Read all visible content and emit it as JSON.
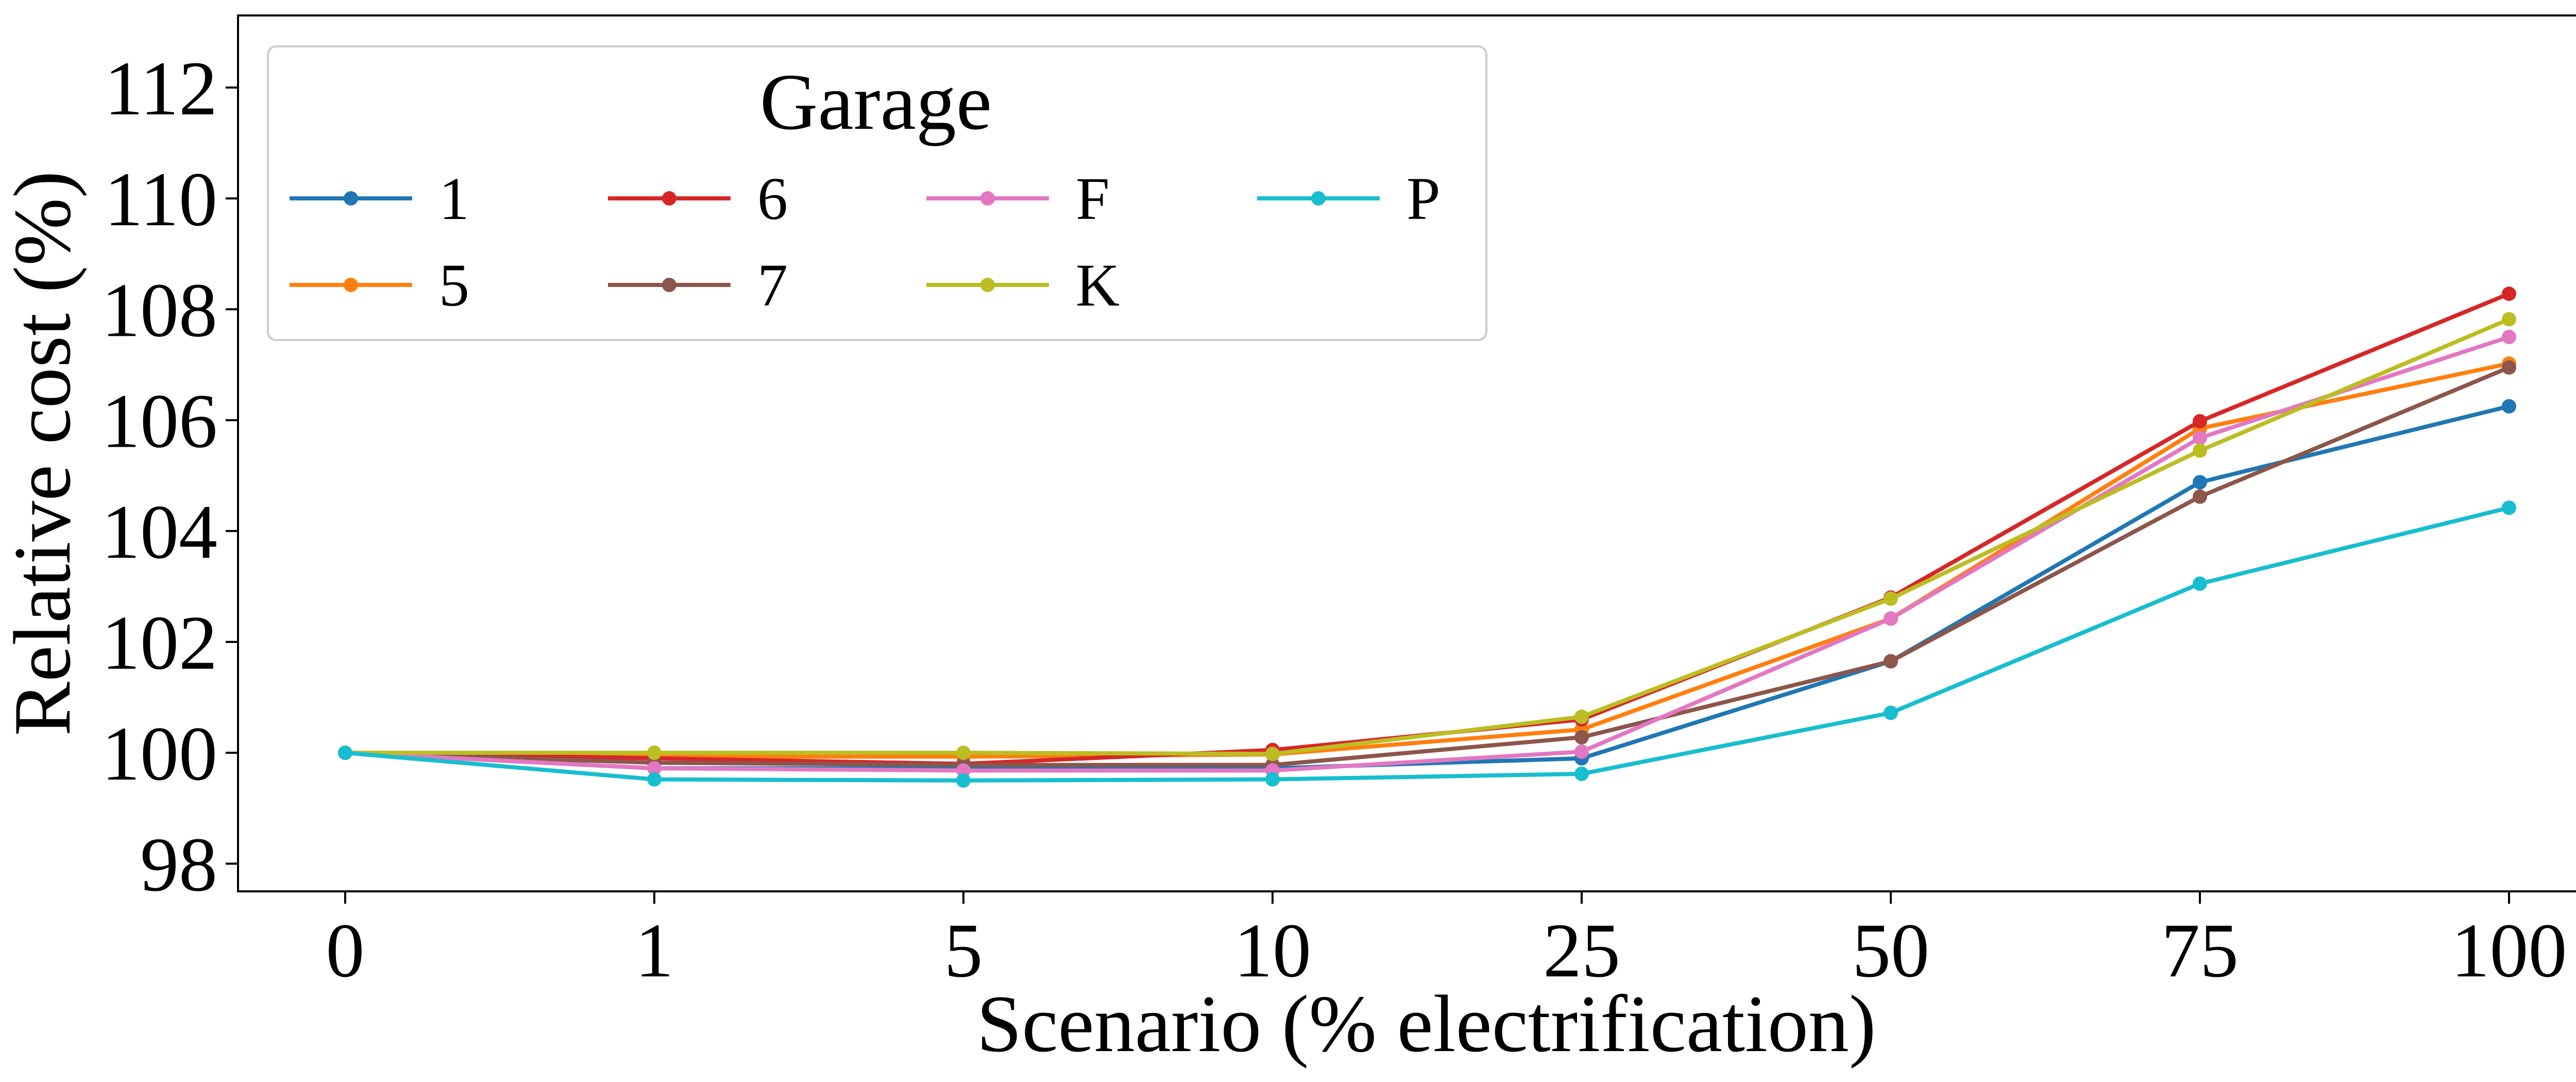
{
  "chart_data": {
    "type": "line",
    "xlabel": "Scenario (% electrification)",
    "ylabel": "Relative cost (%)",
    "categories": [
      "0",
      "1",
      "5",
      "10",
      "25",
      "50",
      "75",
      "100"
    ],
    "ylim": [
      97.5,
      113.3
    ],
    "yticks": [
      98,
      100,
      102,
      104,
      106,
      108,
      110,
      112
    ],
    "grid": false,
    "legend": {
      "title": "Garage",
      "placement": "top-left",
      "columns": 4
    },
    "series": [
      {
        "name": "1",
        "color": "#1f77b4",
        "values": [
          100.0,
          99.72,
          99.72,
          99.72,
          99.9,
          101.65,
          104.88,
          106.25
        ]
      },
      {
        "name": "5",
        "color": "#ff7f0e",
        "values": [
          100.0,
          99.93,
          99.93,
          99.97,
          100.42,
          102.42,
          105.85,
          107.02
        ]
      },
      {
        "name": "6",
        "color": "#d62728",
        "values": [
          100.0,
          99.9,
          99.8,
          100.05,
          100.6,
          102.8,
          105.98,
          108.28
        ]
      },
      {
        "name": "7",
        "color": "#8c564b",
        "values": [
          100.0,
          99.82,
          99.78,
          99.78,
          100.28,
          101.65,
          104.62,
          106.95
        ]
      },
      {
        "name": "F",
        "color": "#e377c2",
        "values": [
          100.0,
          99.72,
          99.68,
          99.68,
          100.02,
          102.42,
          105.68,
          107.5
        ]
      },
      {
        "name": "K",
        "color": "#bcbd22",
        "values": [
          100.0,
          100.0,
          100.0,
          99.98,
          100.65,
          102.78,
          105.45,
          107.82
        ]
      },
      {
        "name": "P",
        "color": "#17becf",
        "values": [
          100.0,
          99.52,
          99.5,
          99.52,
          99.62,
          100.72,
          103.05,
          104.42
        ]
      }
    ]
  }
}
